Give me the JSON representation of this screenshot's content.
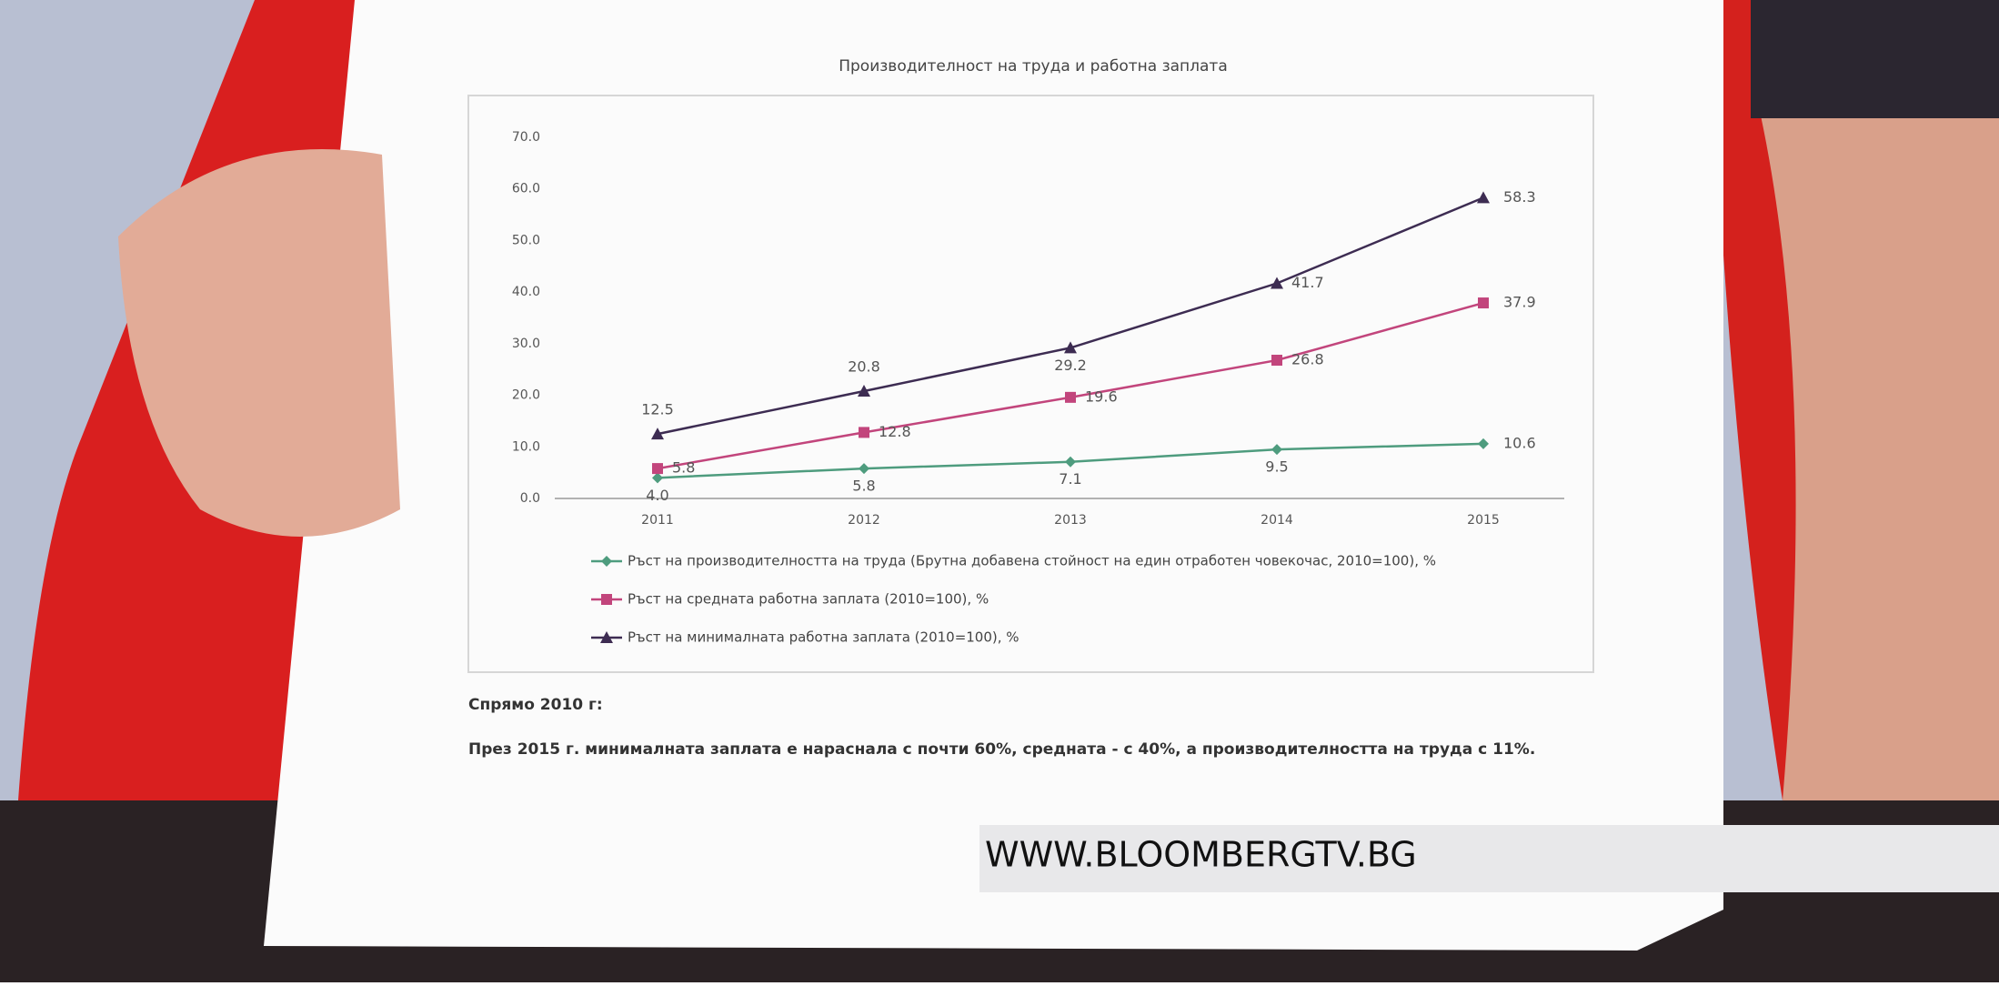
{
  "chart_data": {
    "type": "line",
    "title": "Производителност на труда и работна заплата",
    "categories": [
      "2011",
      "2012",
      "2013",
      "2014",
      "2015"
    ],
    "series": [
      {
        "name": "Ръст на производителността на труда (Брутна добавена стойност на един отработен човекочас, 2010=100), %",
        "color": "#4e9c7e",
        "marker": "diamond",
        "values": [
          4.0,
          5.8,
          7.1,
          9.5,
          10.6
        ],
        "value_labels": [
          "4.0",
          "5.8",
          "7.1",
          "9.5",
          "10.6"
        ]
      },
      {
        "name": "Ръст на средната работна заплата (2010=100), %",
        "color": "#c2457c",
        "marker": "square",
        "values": [
          5.8,
          12.8,
          19.6,
          26.8,
          37.9
        ],
        "value_labels": [
          "5.8",
          "12.8",
          "19.6",
          "26.8",
          "37.9"
        ]
      },
      {
        "name": "Ръст на минималната работна заплата (2010=100), %",
        "color": "#3d2c52",
        "marker": "triangle",
        "values": [
          12.5,
          20.8,
          29.2,
          41.7,
          58.3
        ],
        "value_labels": [
          "12.5",
          "20.8",
          "29.2",
          "41.7",
          "58.3"
        ]
      }
    ],
    "ylim": [
      0,
      70
    ],
    "yticks": [
      {
        "value": 0,
        "label": "0.0"
      },
      {
        "value": 10,
        "label": "10.0"
      },
      {
        "value": 20,
        "label": "20.0"
      },
      {
        "value": 30,
        "label": "30.0"
      },
      {
        "value": 40,
        "label": "40.0"
      },
      {
        "value": 50,
        "label": "50.0"
      },
      {
        "value": 60,
        "label": "60.0"
      },
      {
        "value": 70,
        "label": "70.0"
      }
    ],
    "grid": false,
    "legend": "bottom"
  },
  "note_heading": "Спрямо 2010 г:",
  "note_text": "През 2015 г. минималната заплата е нараснала с почти 60%, средната - с 40%, а производителността на труда с 11%.",
  "banner": "WWW.BLOOMBERGTV.BG"
}
